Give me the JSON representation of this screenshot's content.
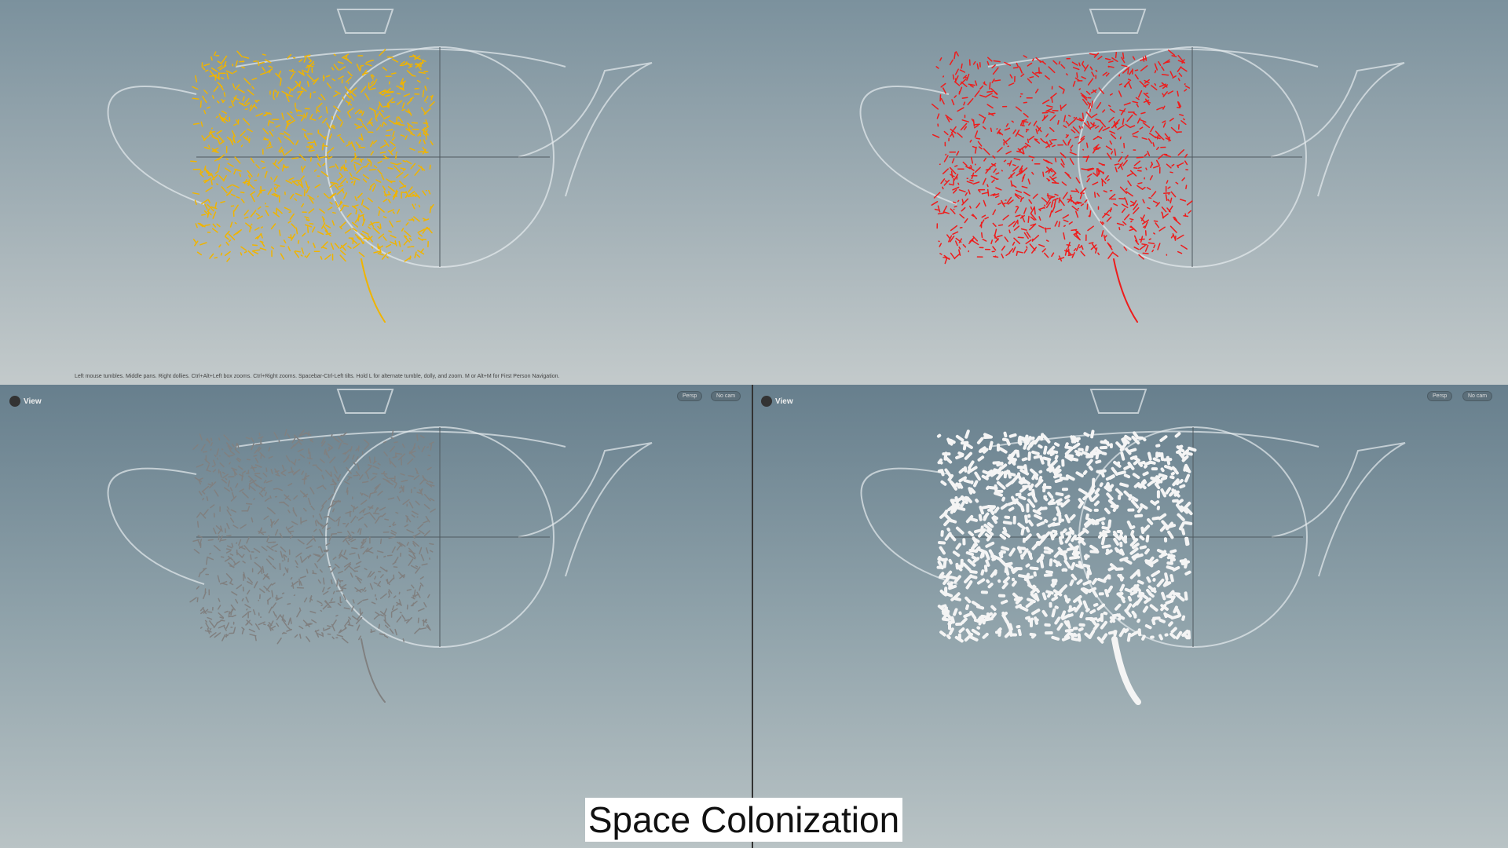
{
  "status_bar": {
    "hint": "Left mouse tumbles. Middle pans. Right dollies. Ctrl+Alt+Left box zooms. Ctrl+Right zooms. Spacebar-Ctrl-Left tilts. Hold L for alternate tumble, dolly, and zoom. M or Alt+M for First Person Navigation."
  },
  "viewports": [
    {
      "id": "top-left",
      "branch_color": "#f0b400"
    },
    {
      "id": "top-right",
      "branch_color": "#ee1c1c"
    },
    {
      "id": "bottom-left",
      "label": "View",
      "persp": "Persp",
      "cam": "No cam",
      "branch_color": "#808080"
    },
    {
      "id": "bottom-right",
      "label": "View",
      "persp": "Persp",
      "cam": "No cam",
      "branch_color": "#f4f4f4"
    }
  ],
  "caption": "Space Colonization"
}
